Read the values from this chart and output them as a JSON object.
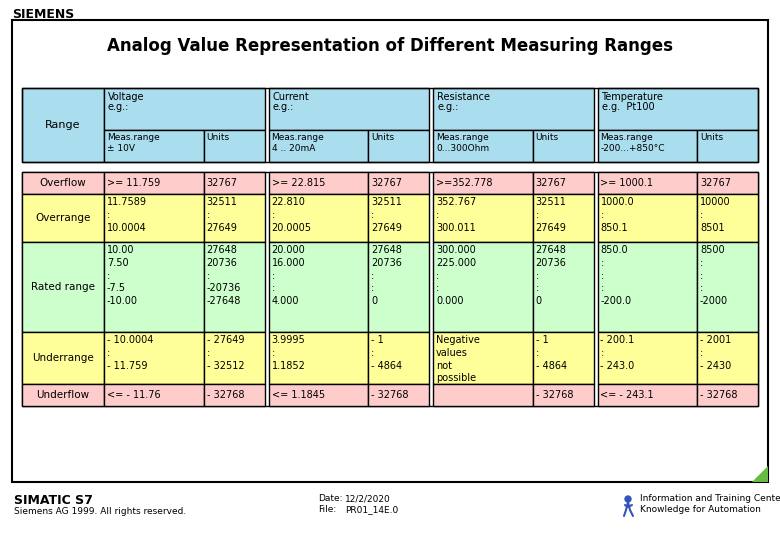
{
  "title": "Analog Value Representation of Different Measuring Ranges",
  "siemens_logo": "SIEMENS",
  "footer_left": "SIMATIC S7",
  "footer_left2": "Siemens AG 1999. All rights reserved.",
  "footer_date_label": "Date:",
  "footer_date_val": "12/2/2020",
  "footer_file_label": "File:",
  "footer_file_val": "PR01_14E.0",
  "footer_right": "Information and Training Center\nKnowledge for Automation",
  "bg_color": "#ffffff",
  "col_header_bg": "#aaddee",
  "overflow_bg": "#ffcccc",
  "overrange_bg": "#ffff99",
  "rated_bg": "#ccffcc",
  "underrange_bg": "#ffff99",
  "underflow_bg": "#ffcccc",
  "columns": [
    {
      "header1": "Voltage",
      "header2": "e.g.:",
      "meas": "Meas.range\n± 10V",
      "units": "Units"
    },
    {
      "header1": "Current",
      "header2": "e.g.:",
      "meas": "Meas.range\n4 .. 20mA",
      "units": "Units"
    },
    {
      "header1": "Resistance",
      "header2": "e.g.:",
      "meas": "Meas.range\n0...300Ohm",
      "units": "Units"
    },
    {
      "header1": "Temperature",
      "header2": "e.g.  Pt100",
      "meas": "Meas.range\n-200...+850°C",
      "units": "Units"
    }
  ],
  "rows": {
    "overflow": {
      "label": "Overflow",
      "data": [
        [
          ">= 11.759",
          "32767"
        ],
        [
          ">= 22.815",
          "32767"
        ],
        [
          ">=352.778",
          "32767"
        ],
        [
          ">= 1000.1",
          "32767"
        ]
      ]
    },
    "overrange": {
      "label": "Overrange",
      "data": [
        [
          "11.7589\n:\n10.0004",
          "32511\n:\n27649"
        ],
        [
          "22.810\n:\n20.0005",
          "32511\n:\n27649"
        ],
        [
          "352.767\n:\n300.011",
          "32511\n:\n27649"
        ],
        [
          "1000.0\n:\n850.1",
          "10000\n:\n8501"
        ]
      ]
    },
    "rated": {
      "label": "Rated range",
      "data": [
        [
          "10.00\n7.50\n:\n-7.5\n-10.00",
          "27648\n20736\n:\n-20736\n-27648"
        ],
        [
          "20.000\n16.000\n:\n:\n4.000",
          "27648\n20736\n:\n:\n0"
        ],
        [
          "300.000\n225.000\n:\n:\n0.000",
          "27648\n20736\n:\n:\n0"
        ],
        [
          "850.0\n:\n:\n:\n-200.0",
          "8500\n:\n:\n:\n-2000"
        ]
      ]
    },
    "underrange": {
      "label": "Underrange",
      "data": [
        [
          "- 10.0004\n:\n- 11.759",
          "- 27649\n:\n- 32512"
        ],
        [
          "3.9995\n:\n1.1852",
          "- 1\n:\n- 4864"
        ],
        [
          "Negative\nvalues\nnot\npossible",
          "- 1\n:\n- 4864"
        ],
        [
          "- 200.1\n:\n- 243.0",
          "- 2001\n:\n- 2430"
        ]
      ]
    },
    "underflow": {
      "label": "Underflow",
      "data": [
        [
          "<= - 11.76",
          "- 32768"
        ],
        [
          "<= 1.1845",
          "- 32768"
        ],
        [
          "",
          "- 32768"
        ],
        [
          "<= - 243.1",
          "- 32768"
        ]
      ]
    }
  }
}
